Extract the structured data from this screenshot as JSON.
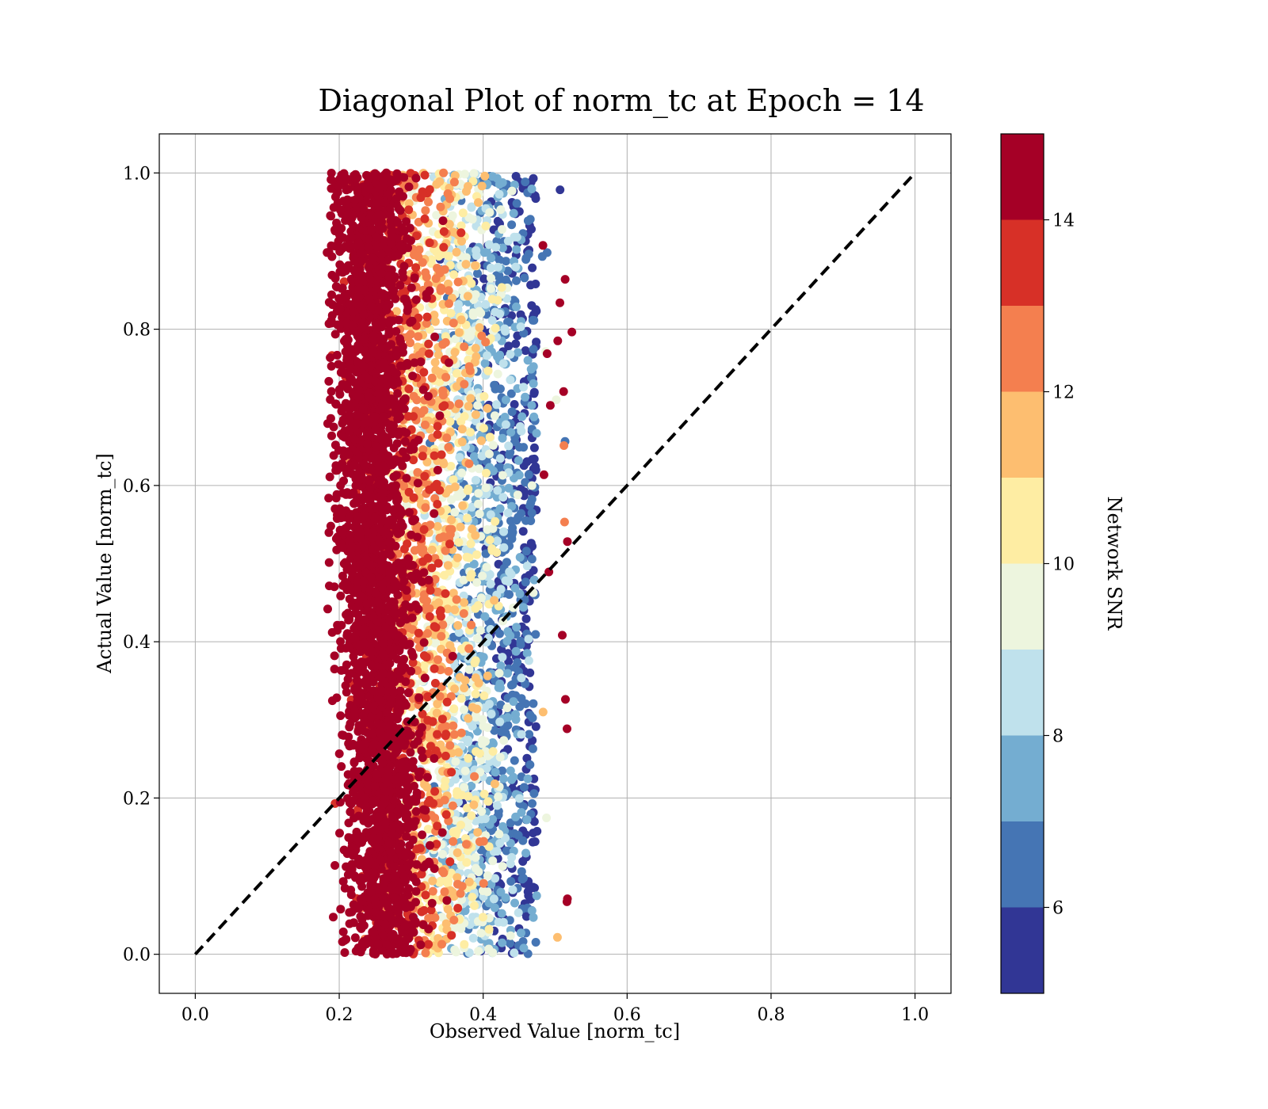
{
  "chart_data": {
    "type": "scatter",
    "title": "Diagonal Plot of norm_tc at Epoch = 14",
    "xlabel": "Observed Value [norm_tc]",
    "ylabel": "Actual Value [norm_tc]",
    "xlim": [
      -0.05,
      1.05
    ],
    "ylim": [
      -0.05,
      1.05
    ],
    "x_ticks": [
      0.0,
      0.2,
      0.4,
      0.6,
      0.8,
      1.0
    ],
    "x_tick_labels": [
      "0.0",
      "0.2",
      "0.4",
      "0.6",
      "0.8",
      "1.0"
    ],
    "y_ticks": [
      0.0,
      0.2,
      0.4,
      0.6,
      0.8,
      1.0
    ],
    "y_tick_labels": [
      "0.0",
      "0.2",
      "0.4",
      "0.6",
      "0.8",
      "1.0"
    ],
    "grid": true,
    "diagonal_line": {
      "x": [
        0.0,
        1.0
      ],
      "y": [
        0.0,
        1.0
      ],
      "style": "dashed",
      "color": "#000000"
    },
    "scatter_summary": {
      "x_range": [
        0.18,
        0.52
      ],
      "y_range": [
        0.0,
        1.0
      ],
      "high_snr_x_center": 0.25,
      "low_snr_x_center": 0.46,
      "point_count_estimate": 6000
    },
    "colorbar": {
      "label": "Network SNR",
      "range": [
        5,
        15
      ],
      "ticks": [
        6,
        8,
        10,
        12,
        14
      ],
      "tick_labels": [
        "6",
        "8",
        "10",
        "12",
        "14"
      ],
      "bins": [
        {
          "from": 5,
          "to": 6,
          "color": "#313695"
        },
        {
          "from": 6,
          "to": 7,
          "color": "#4575b4"
        },
        {
          "from": 7,
          "to": 8,
          "color": "#74add1"
        },
        {
          "from": 8,
          "to": 9,
          "color": "#bfe1ec"
        },
        {
          "from": 9,
          "to": 10,
          "color": "#edf5de"
        },
        {
          "from": 10,
          "to": 11,
          "color": "#feeda3"
        },
        {
          "from": 11,
          "to": 12,
          "color": "#fdbe70"
        },
        {
          "from": 12,
          "to": 13,
          "color": "#f47f4f"
        },
        {
          "from": 13,
          "to": 14,
          "color": "#d73027"
        },
        {
          "from": 14,
          "to": 15,
          "color": "#a50026"
        }
      ]
    }
  }
}
